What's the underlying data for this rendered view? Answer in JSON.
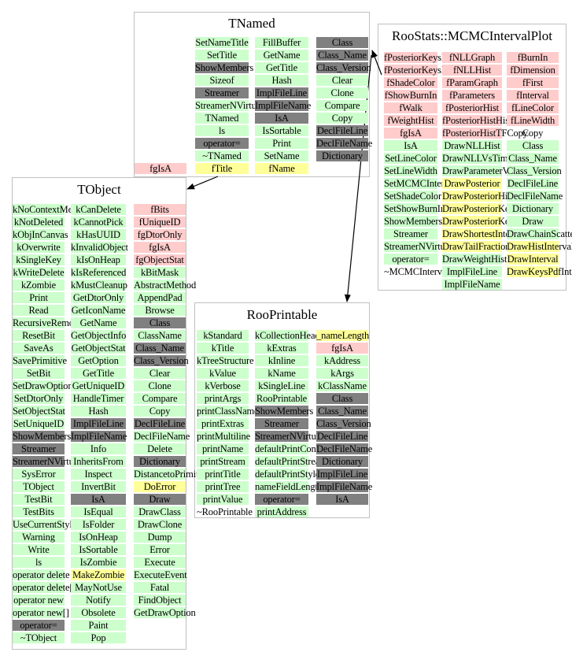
{
  "colors": {
    "public_method": "#ccffcc",
    "protected_member": "#808080",
    "private_member": "#ffcccc",
    "data_member": "#ffff99"
  },
  "classes": [
    {
      "id": "TNamed",
      "title": "TNamed",
      "columns": [
        [
          [
            "SetNameTitle",
            "g"
          ],
          [
            "SetTitle",
            "g"
          ],
          [
            "ShowMembers",
            "d"
          ],
          [
            "Sizeof",
            "g"
          ],
          [
            "Streamer",
            "d"
          ],
          [
            "StreamerNVirtual",
            "g"
          ],
          [
            "TNamed",
            "g"
          ],
          [
            "ls",
            "g"
          ],
          [
            "operator=",
            "d"
          ],
          [
            "~TNamed",
            "g"
          ],
          [
            "fTitle",
            "y"
          ]
        ],
        [
          [
            "FillBuffer",
            "g"
          ],
          [
            "GetName",
            "g"
          ],
          [
            "GetTitle",
            "g"
          ],
          [
            "Hash",
            "g"
          ],
          [
            "ImplFileLine",
            "d"
          ],
          [
            "ImplFileName",
            "d"
          ],
          [
            "IsA",
            "d"
          ],
          [
            "IsSortable",
            "g"
          ],
          [
            "Print",
            "g"
          ],
          [
            "SetName",
            "g"
          ],
          [
            "fName",
            "y"
          ]
        ],
        [
          [
            "Class",
            "d"
          ],
          [
            "Class_Name",
            "d"
          ],
          [
            "Class_Version",
            "d"
          ],
          [
            "Clear",
            "g"
          ],
          [
            "Clone",
            "g"
          ],
          [
            "Compare",
            "g"
          ],
          [
            "Copy",
            "g"
          ],
          [
            "DeclFileLine",
            "d"
          ],
          [
            "DeclFileName",
            "d"
          ],
          [
            "Dictionary",
            "d"
          ]
        ]
      ],
      "extras": [
        [
          "fgIsA",
          "p"
        ]
      ]
    },
    {
      "id": "RooStats::MCMCIntervalPlot",
      "title": "RooStats::MCMCIntervalPlot",
      "columns": [
        [
          [
            "fPosteriorKeysPdf",
            "p"
          ],
          [
            "fPosteriorKeysProduct",
            "p"
          ],
          [
            "fShadeColor",
            "p"
          ],
          [
            "fShowBurnIn",
            "p"
          ],
          [
            "fWalk",
            "p"
          ],
          [
            "fWeightHist",
            "p"
          ],
          [
            "fgIsA",
            "p"
          ],
          [
            "IsA",
            "g"
          ],
          [
            "SetLineColor",
            "g"
          ],
          [
            "SetLineWidth",
            "g"
          ],
          [
            "SetMCMCInterval",
            "g"
          ],
          [
            "SetShadeColor",
            "g"
          ],
          [
            "SetShowBurnIn",
            "g"
          ],
          [
            "ShowMembers",
            "g"
          ],
          [
            "Streamer",
            "g"
          ],
          [
            "StreamerNVirtual",
            "g"
          ],
          [
            "operator=",
            "g"
          ],
          [
            "~MCMCIntervalPlot",
            "w"
          ]
        ],
        [
          [
            "fNLLGraph",
            "p"
          ],
          [
            "fNLLHist",
            "p"
          ],
          [
            "fParamGraph",
            "p"
          ],
          [
            "fParameters",
            "p"
          ],
          [
            "fPosteriorHist",
            "p"
          ],
          [
            "fPosteriorHistHistCopy",
            "p"
          ],
          [
            "fPosteriorHistTFCopy",
            "p"
          ],
          [
            "DrawNLLHist",
            "g"
          ],
          [
            "DrawNLLVsTime",
            "g"
          ],
          [
            "DrawParameterVsTime",
            "g"
          ],
          [
            "DrawPosterior",
            "y"
          ],
          [
            "DrawPosteriorHist",
            "y"
          ],
          [
            "DrawPosteriorKeysPdf",
            "y"
          ],
          [
            "DrawPosteriorKeysProduct",
            "y"
          ],
          [
            "DrawShortestInterval",
            "y"
          ],
          [
            "DrawTailFractionInterval",
            "y"
          ],
          [
            "DrawWeightHist",
            "g"
          ],
          [
            "ImplFileLine",
            "g"
          ],
          [
            "ImplFileName",
            "g"
          ]
        ],
        [
          [
            "fBurnIn",
            "p"
          ],
          [
            "fDimension",
            "p"
          ],
          [
            "fFirst",
            "p"
          ],
          [
            "fInterval",
            "p"
          ],
          [
            "fLineColor",
            "p"
          ],
          [
            "fLineWidth",
            "p"
          ],
          [
            "Copy",
            "w"
          ],
          [
            "Class",
            "g"
          ],
          [
            "Class_Name",
            "g"
          ],
          [
            "Class_Version",
            "g"
          ],
          [
            "DeclFileLine",
            "g"
          ],
          [
            "DeclFileName",
            "g"
          ],
          [
            "Dictionary",
            "g"
          ],
          [
            "Draw",
            "g"
          ],
          [
            "DrawChainScatter",
            "g"
          ],
          [
            "DrawHistInterval",
            "y"
          ],
          [
            "DrawInterval",
            "y"
          ],
          [
            "DrawKeysPdfInterval",
            "y"
          ]
        ]
      ]
    },
    {
      "id": "TObject",
      "title": "TObject",
      "columns": [
        [
          [
            "kNoContextMenu",
            "g"
          ],
          [
            "kNotDeleted",
            "g"
          ],
          [
            "kObjInCanvas",
            "g"
          ],
          [
            "kOverwrite",
            "g"
          ],
          [
            "kSingleKey",
            "g"
          ],
          [
            "kWriteDelete",
            "g"
          ],
          [
            "kZombie",
            "g"
          ],
          [
            "Print",
            "g"
          ],
          [
            "Read",
            "g"
          ],
          [
            "RecursiveRemove",
            "g"
          ],
          [
            "ResetBit",
            "g"
          ],
          [
            "SaveAs",
            "g"
          ],
          [
            "SavePrimitive",
            "g"
          ],
          [
            "SetBit",
            "g"
          ],
          [
            "SetDrawOption",
            "g"
          ],
          [
            "SetDtorOnly",
            "g"
          ],
          [
            "SetObjectStat",
            "g"
          ],
          [
            "SetUniqueID",
            "g"
          ],
          [
            "ShowMembers",
            "d"
          ],
          [
            "Streamer",
            "d"
          ],
          [
            "StreamerNVirtual",
            "d"
          ],
          [
            "SysError",
            "g"
          ],
          [
            "TObject",
            "g"
          ],
          [
            "TestBit",
            "g"
          ],
          [
            "TestBits",
            "g"
          ],
          [
            "UseCurrentStyle",
            "g"
          ],
          [
            "Warning",
            "g"
          ],
          [
            "Write",
            "g"
          ],
          [
            "ls",
            "g"
          ],
          [
            "operator delete",
            "g"
          ],
          [
            "operator delete[]",
            "g"
          ],
          [
            "operator new",
            "g"
          ],
          [
            "operator new[]",
            "g"
          ],
          [
            "operator=",
            "d"
          ],
          [
            "~TObject",
            "g"
          ]
        ],
        [
          [
            "kCanDelete",
            "g"
          ],
          [
            "kCannotPick",
            "g"
          ],
          [
            "kHasUUID",
            "g"
          ],
          [
            "kInvalidObject",
            "g"
          ],
          [
            "kIsOnHeap",
            "g"
          ],
          [
            "kIsReferenced",
            "g"
          ],
          [
            "kMustCleanup",
            "g"
          ],
          [
            "GetDtorOnly",
            "g"
          ],
          [
            "GetIconName",
            "g"
          ],
          [
            "GetName",
            "g"
          ],
          [
            "GetObjectInfo",
            "g"
          ],
          [
            "GetObjectStat",
            "g"
          ],
          [
            "GetOption",
            "g"
          ],
          [
            "GetTitle",
            "g"
          ],
          [
            "GetUniqueID",
            "g"
          ],
          [
            "HandleTimer",
            "g"
          ],
          [
            "Hash",
            "g"
          ],
          [
            "ImplFileLine",
            "d"
          ],
          [
            "ImplFileName",
            "d"
          ],
          [
            "Info",
            "g"
          ],
          [
            "InheritsFrom",
            "g"
          ],
          [
            "Inspect",
            "g"
          ],
          [
            "InvertBit",
            "g"
          ],
          [
            "IsA",
            "d"
          ],
          [
            "IsEqual",
            "g"
          ],
          [
            "IsFolder",
            "g"
          ],
          [
            "IsOnHeap",
            "g"
          ],
          [
            "IsSortable",
            "g"
          ],
          [
            "IsZombie",
            "g"
          ],
          [
            "MakeZombie",
            "y"
          ],
          [
            "MayNotUse",
            "g"
          ],
          [
            "Notify",
            "g"
          ],
          [
            "Obsolete",
            "g"
          ],
          [
            "Paint",
            "g"
          ],
          [
            "Pop",
            "g"
          ]
        ],
        [
          [
            "fBits",
            "p"
          ],
          [
            "fUniqueID",
            "p"
          ],
          [
            "fgDtorOnly",
            "p"
          ],
          [
            "fgIsA",
            "p"
          ],
          [
            "fgObjectStat",
            "p"
          ],
          [
            "kBitMask",
            "g"
          ],
          [
            "AbstractMethod",
            "g"
          ],
          [
            "AppendPad",
            "g"
          ],
          [
            "Browse",
            "g"
          ],
          [
            "Class",
            "d"
          ],
          [
            "ClassName",
            "g"
          ],
          [
            "Class_Name",
            "d"
          ],
          [
            "Class_Version",
            "d"
          ],
          [
            "Clear",
            "g"
          ],
          [
            "Clone",
            "g"
          ],
          [
            "Compare",
            "g"
          ],
          [
            "Copy",
            "g"
          ],
          [
            "DeclFileLine",
            "d"
          ],
          [
            "DeclFileName",
            "g"
          ],
          [
            "Delete",
            "g"
          ],
          [
            "Dictionary",
            "d"
          ],
          [
            "DistancetoPrimitive",
            "g"
          ],
          [
            "DoError",
            "y"
          ],
          [
            "Draw",
            "d"
          ],
          [
            "DrawClass",
            "g"
          ],
          [
            "DrawClone",
            "g"
          ],
          [
            "Dump",
            "g"
          ],
          [
            "Error",
            "g"
          ],
          [
            "Execute",
            "g"
          ],
          [
            "ExecuteEvent",
            "g"
          ],
          [
            "Fatal",
            "g"
          ],
          [
            "FindObject",
            "g"
          ],
          [
            "GetDrawOption",
            "g"
          ]
        ]
      ]
    },
    {
      "id": "RooPrintable",
      "title": "RooPrintable",
      "columns": [
        [
          [
            "kStandard",
            "g"
          ],
          [
            "kTitle",
            "g"
          ],
          [
            "kTreeStructure",
            "g"
          ],
          [
            "kValue",
            "g"
          ],
          [
            "kVerbose",
            "g"
          ],
          [
            "printArgs",
            "g"
          ],
          [
            "printClassName",
            "g"
          ],
          [
            "printExtras",
            "g"
          ],
          [
            "printMultiline",
            "g"
          ],
          [
            "printName",
            "g"
          ],
          [
            "printStream",
            "g"
          ],
          [
            "printTitle",
            "g"
          ],
          [
            "printTree",
            "g"
          ],
          [
            "printValue",
            "g"
          ],
          [
            "~RooPrintable",
            "w"
          ]
        ],
        [
          [
            "kCollectionHeader",
            "g"
          ],
          [
            "kExtras",
            "g"
          ],
          [
            "kInline",
            "g"
          ],
          [
            "kName",
            "g"
          ],
          [
            "kSingleLine",
            "g"
          ],
          [
            "RooPrintable",
            "g"
          ],
          [
            "ShowMembers",
            "d"
          ],
          [
            "Streamer",
            "d"
          ],
          [
            "StreamerNVirtual",
            "d"
          ],
          [
            "defaultPrintContents",
            "g"
          ],
          [
            "defaultPrintStream",
            "g"
          ],
          [
            "defaultPrintStyle",
            "g"
          ],
          [
            "nameFieldLength",
            "g"
          ],
          [
            "operator=",
            "d"
          ],
          [
            "printAddress",
            "g"
          ]
        ],
        [
          [
            "_nameLength",
            "y"
          ],
          [
            "fgIsA",
            "p"
          ],
          [
            "kAddress",
            "g"
          ],
          [
            "kArgs",
            "g"
          ],
          [
            "kClassName",
            "g"
          ],
          [
            "Class",
            "d"
          ],
          [
            "Class_Name",
            "d"
          ],
          [
            "Class_Version",
            "d"
          ],
          [
            "DeclFileLine",
            "d"
          ],
          [
            "DeclFileName",
            "d"
          ],
          [
            "Dictionary",
            "d"
          ],
          [
            "ImplFileLine",
            "d"
          ],
          [
            "ImplFileName",
            "d"
          ],
          [
            "IsA",
            "d"
          ]
        ]
      ]
    }
  ]
}
